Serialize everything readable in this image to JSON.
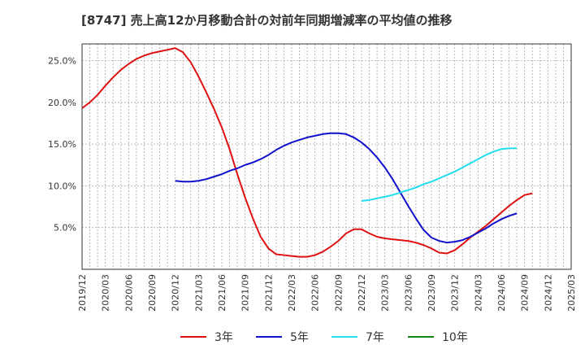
{
  "chart_data": {
    "type": "line",
    "title": "[8747]  売上高12か月移動合計の対前年同期増減率の平均値の推移",
    "xlabel": "",
    "ylabel": "",
    "ylim": [
      0,
      27
    ],
    "y_ticks": [
      5,
      10,
      15,
      20,
      25
    ],
    "y_tick_labels": [
      "5.0%",
      "10.0%",
      "15.0%",
      "20.0%",
      "25.0%"
    ],
    "x_tick_labels": [
      "2019/12",
      "2020/03",
      "2020/06",
      "2020/09",
      "2020/12",
      "2021/03",
      "2021/06",
      "2021/09",
      "2021/12",
      "2022/03",
      "2022/06",
      "2022/09",
      "2022/12",
      "2023/03",
      "2023/06",
      "2023/09",
      "2023/12",
      "2024/03",
      "2024/06",
      "2024/09",
      "2024/12",
      "2025/03"
    ],
    "series": [
      {
        "name": "3年",
        "color": "#dd1111",
        "start_index": 0,
        "values": [
          19.3,
          20.0,
          20.9,
          22.0,
          23.0,
          23.9,
          24.6,
          25.2,
          25.6,
          25.9,
          26.1,
          26.3,
          26.5,
          26.0,
          24.8,
          23.1,
          21.2,
          19.2,
          17.0,
          14.4,
          11.4,
          8.6,
          6.1,
          3.9,
          2.5,
          1.8,
          1.7,
          1.6,
          1.5,
          1.5,
          1.7,
          2.1,
          2.7,
          3.4,
          4.3,
          4.8,
          4.8,
          4.3,
          3.9,
          3.7,
          3.6,
          3.5,
          3.4,
          3.2,
          2.9,
          2.5,
          2.0,
          1.9,
          2.3,
          3.0,
          3.8,
          4.5,
          5.2,
          6.0,
          6.8,
          7.6,
          8.3,
          8.9,
          9.1
        ]
      },
      {
        "name": "5年",
        "color": "#1111cc",
        "start_index": 12,
        "values": [
          10.6,
          10.5,
          10.5,
          10.6,
          10.8,
          11.1,
          11.4,
          11.8,
          12.1,
          12.5,
          12.8,
          13.2,
          13.7,
          14.3,
          14.8,
          15.2,
          15.5,
          15.8,
          16.0,
          16.2,
          16.3,
          16.3,
          16.2,
          15.8,
          15.2,
          14.4,
          13.4,
          12.2,
          10.8,
          9.2,
          7.6,
          6.1,
          4.7,
          3.8,
          3.4,
          3.2,
          3.3,
          3.5,
          3.9,
          4.4,
          4.9,
          5.5,
          6.0,
          6.4,
          6.7
        ]
      },
      {
        "name": "7年",
        "color": "#22ddee",
        "start_index": 36,
        "values": [
          8.2,
          8.3,
          8.5,
          8.7,
          8.9,
          9.2,
          9.5,
          9.8,
          10.2,
          10.5,
          10.9,
          11.3,
          11.7,
          12.2,
          12.7,
          13.2,
          13.7,
          14.1,
          14.4,
          14.5,
          14.5
        ]
      },
      {
        "name": "10年",
        "color": "#118811",
        "start_index": 0,
        "values": []
      }
    ]
  }
}
